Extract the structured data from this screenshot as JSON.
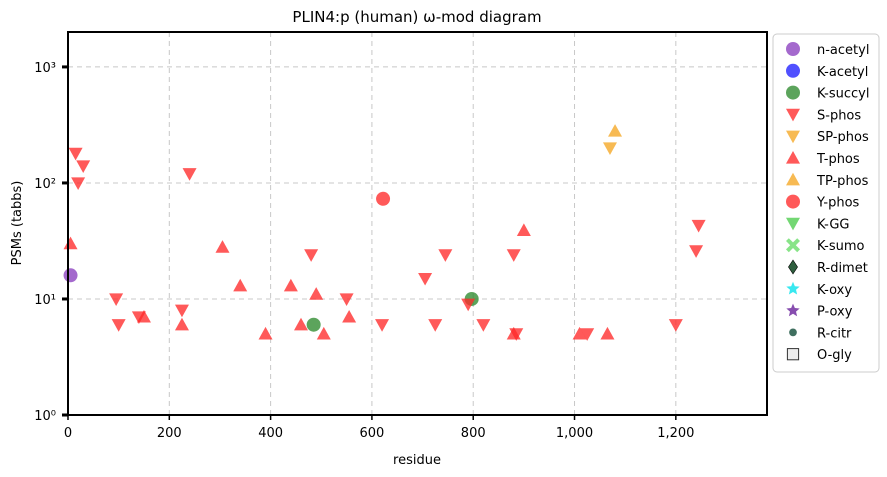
{
  "chart_data": {
    "type": "scatter",
    "title": "PLIN4:p (human) ω-mod diagram",
    "xlabel": "residue",
    "ylabel": "PSMs (tabbs)",
    "xlim": [
      0,
      1380
    ],
    "ylim": [
      1,
      2000
    ],
    "y_scale": "log",
    "x_ticks": [
      0,
      200,
      400,
      600,
      800,
      1000,
      1200
    ],
    "x_tick_labels": [
      "0",
      "200",
      "400",
      "600",
      "800",
      "1,000",
      "1,200"
    ],
    "y_ticks": [
      1,
      10,
      100,
      1000
    ],
    "y_tick_labels": [
      "10⁰",
      "10¹",
      "10²",
      "10³"
    ],
    "grid": true,
    "legend_placement": "right, outside",
    "series": [
      {
        "name": "n-acetyl",
        "marker": "circle",
        "color": "#8a3fbf",
        "points": [
          [
            5,
            16
          ]
        ]
      },
      {
        "name": "K-acetyl",
        "marker": "circle",
        "color": "#1f1fff",
        "points": []
      },
      {
        "name": "K-succyl",
        "marker": "circle",
        "color": "#2e8b2e",
        "points": [
          [
            485,
            6
          ],
          [
            797,
            10
          ]
        ]
      },
      {
        "name": "S-phos",
        "marker": "triangle-down",
        "color": "#ff2a2a",
        "points": [
          [
            15,
            180
          ],
          [
            20,
            100
          ],
          [
            30,
            140
          ],
          [
            95,
            10
          ],
          [
            100,
            6
          ],
          [
            140,
            7
          ],
          [
            225,
            8
          ],
          [
            240,
            120
          ],
          [
            480,
            24
          ],
          [
            550,
            10
          ],
          [
            620,
            6
          ],
          [
            705,
            15
          ],
          [
            725,
            6
          ],
          [
            745,
            24
          ],
          [
            790,
            9
          ],
          [
            820,
            6
          ],
          [
            880,
            24
          ],
          [
            885,
            5
          ],
          [
            1025,
            5
          ],
          [
            1200,
            6
          ],
          [
            1240,
            26
          ],
          [
            1245,
            43
          ]
        ]
      },
      {
        "name": "SP-phos",
        "marker": "triangle-down",
        "color": "#f5a623",
        "points": [
          [
            1070,
            200
          ]
        ]
      },
      {
        "name": "T-phos",
        "marker": "triangle-up",
        "color": "#ff2a2a",
        "points": [
          [
            5,
            30
          ],
          [
            150,
            7
          ],
          [
            225,
            6
          ],
          [
            305,
            28
          ],
          [
            340,
            13
          ],
          [
            390,
            5
          ],
          [
            440,
            13
          ],
          [
            460,
            6
          ],
          [
            490,
            11
          ],
          [
            505,
            5
          ],
          [
            555,
            7
          ],
          [
            880,
            5
          ],
          [
            900,
            39
          ],
          [
            1010,
            5
          ],
          [
            1065,
            5
          ]
        ]
      },
      {
        "name": "TP-phos",
        "marker": "triangle-up",
        "color": "#f5a623",
        "points": [
          [
            1080,
            280
          ]
        ]
      },
      {
        "name": "Y-phos",
        "marker": "circle",
        "color": "#ff2a2a",
        "points": [
          [
            622,
            73
          ]
        ]
      },
      {
        "name": "K-GG",
        "marker": "triangle-down",
        "color": "#4ccc4c",
        "points": []
      },
      {
        "name": "K-sumo",
        "marker": "x",
        "color": "#66dd66",
        "points": []
      },
      {
        "name": "R-dimet",
        "marker": "diamond",
        "color": "#2f5f3f",
        "points": []
      },
      {
        "name": "K-oxy",
        "marker": "star",
        "color": "#22e5ee",
        "points": []
      },
      {
        "name": "P-oxy",
        "marker": "star",
        "color": "#7a3aa6",
        "points": []
      },
      {
        "name": "R-citr",
        "marker": "dot",
        "color": "#3f6f5f",
        "points": []
      },
      {
        "name": "O-gly",
        "marker": "square",
        "color": "#eeeeee",
        "points": []
      }
    ]
  }
}
